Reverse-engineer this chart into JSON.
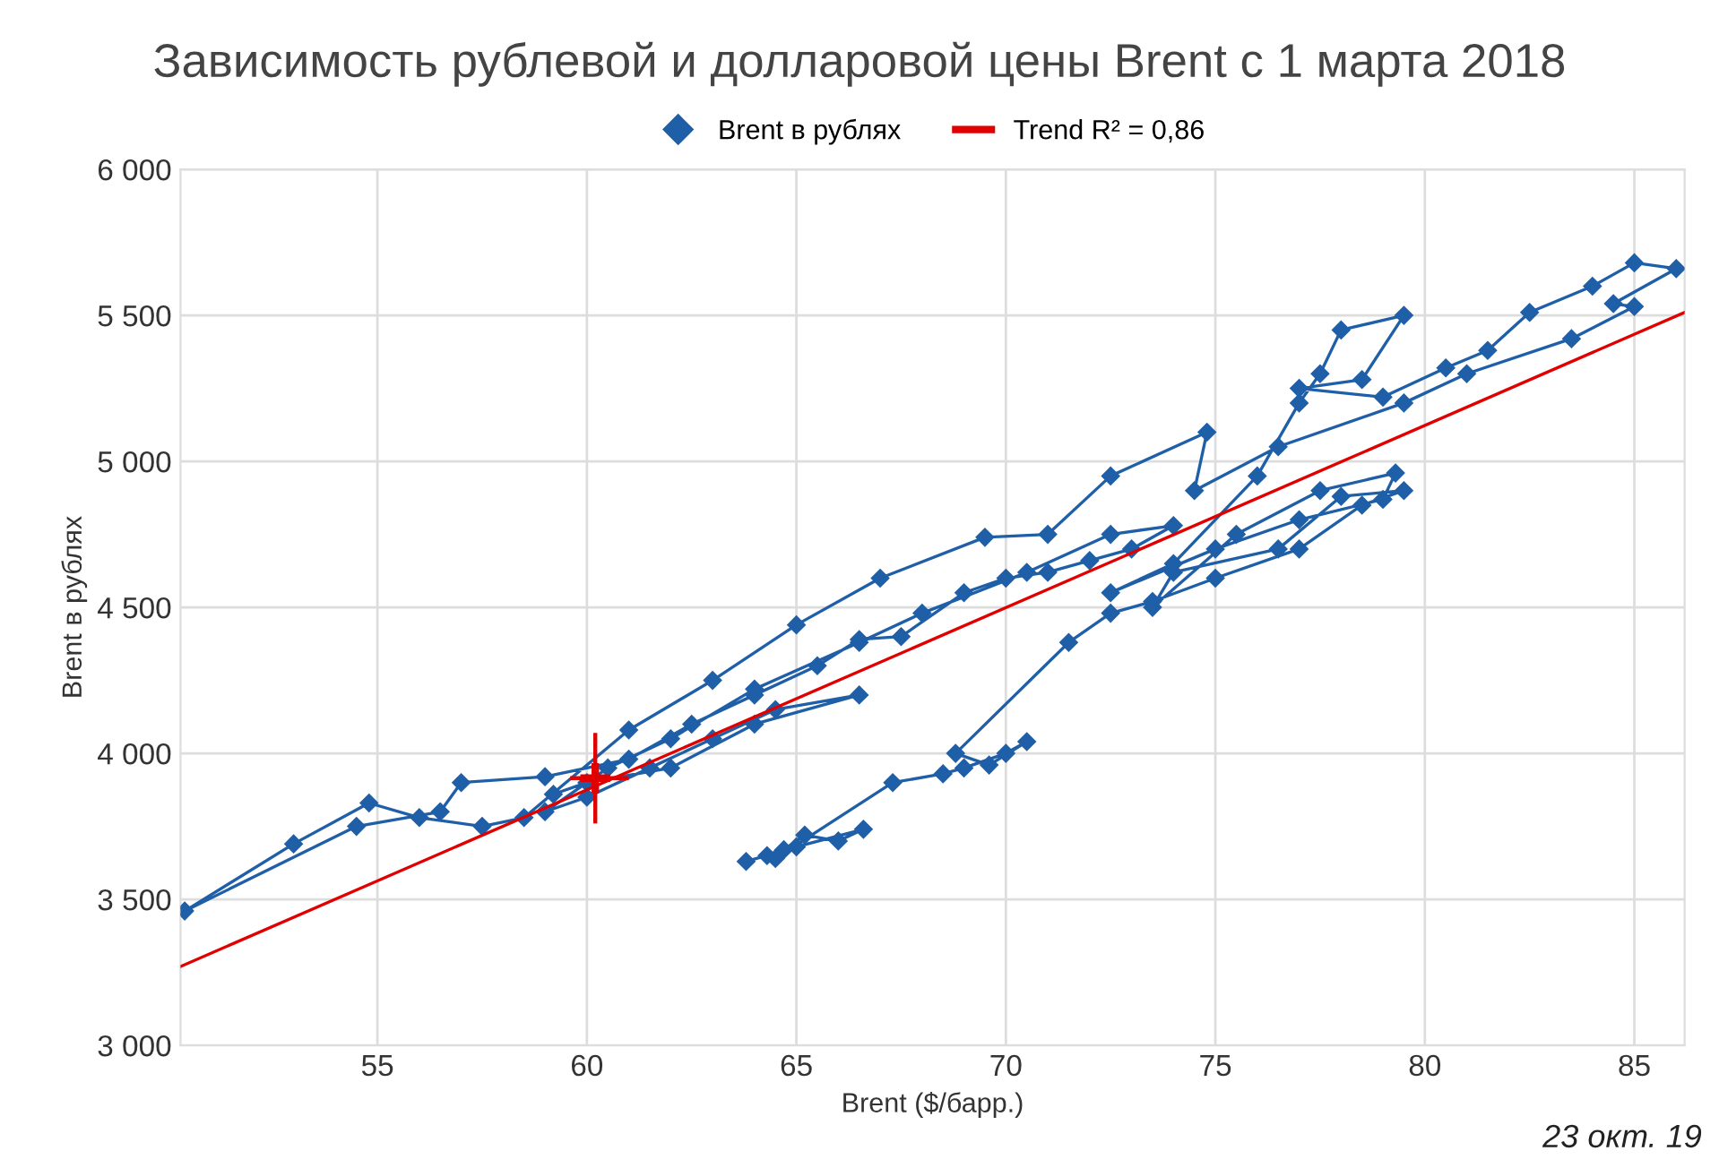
{
  "chart_data": {
    "type": "line",
    "title": "Зависимость рублевой и долларовой цены Brent с 1 марта 2018",
    "xlabel": "Brent ($/барр.)",
    "ylabel": "Brent в рублях",
    "xlim": [
      50.3,
      86.2
    ],
    "xticks": [
      55,
      60,
      65,
      70,
      75,
      80,
      85
    ],
    "ylim": [
      3000,
      6000
    ],
    "yticks": [
      {
        "value": 3000,
        "label": "3 000"
      },
      {
        "value": 3500,
        "label": "3 500"
      },
      {
        "value": 4000,
        "label": "4 000"
      },
      {
        "value": 4500,
        "label": "4 500"
      },
      {
        "value": 5000,
        "label": "5 000"
      },
      {
        "value": 5500,
        "label": "5 500"
      },
      {
        "value": 6000,
        "label": "6 000"
      }
    ],
    "grid": true,
    "legend": "top",
    "marker": "diamond",
    "line_style": "solid",
    "annotations": [
      "23 окт. 19"
    ],
    "series": [
      {
        "name": "Brent в рублях",
        "color": "#1f5fa8",
        "x": [
          63.8,
          64.3,
          64.7,
          65.2,
          66.0,
          66.6,
          65.0,
          64.5,
          67.3,
          68.5,
          69.0,
          70.0,
          70.5,
          69.6,
          68.8,
          71.5,
          72.5,
          73.5,
          75.0,
          77.0,
          78.5,
          79.5,
          78.0,
          76.5,
          74.0,
          73.5,
          75.5,
          77.5,
          79.3,
          79.0,
          77.0,
          75.0,
          72.5,
          74.0,
          76.0,
          77.0,
          77.5,
          78.0,
          79.5,
          78.5,
          77.0,
          79.0,
          80.5,
          81.5,
          82.5,
          84.0,
          85.0,
          86.0,
          84.5,
          85.0,
          83.5,
          81.0,
          79.5,
          76.5,
          74.5,
          74.8,
          72.5,
          71.0,
          69.5,
          67.0,
          65.0,
          63.0,
          61.0,
          58.5,
          57.5,
          56.0,
          54.8,
          53.0,
          50.4,
          54.5,
          56.5,
          57.0,
          59.0,
          61.0,
          62.5,
          64.0,
          65.5,
          66.5,
          67.5,
          69.0,
          70.0,
          71.0,
          72.0,
          73.0,
          74.0,
          72.5,
          70.5,
          68.0,
          66.5,
          64.0,
          62.0,
          60.5,
          59.0,
          60.0,
          61.5,
          63.0,
          64.5,
          66.5,
          64.0,
          62.0,
          60.0,
          59.2
        ],
        "values": [
          3630,
          3650,
          3670,
          3720,
          3700,
          3740,
          3680,
          3640,
          3900,
          3930,
          3950,
          4000,
          4040,
          3960,
          4000,
          4380,
          4480,
          4520,
          4600,
          4700,
          4850,
          4900,
          4880,
          4700,
          4620,
          4500,
          4750,
          4900,
          4960,
          4870,
          4800,
          4700,
          4550,
          4650,
          4950,
          5200,
          5300,
          5450,
          5500,
          5280,
          5250,
          5220,
          5320,
          5380,
          5510,
          5600,
          5680,
          5660,
          5540,
          5530,
          5420,
          5300,
          5200,
          5050,
          4900,
          5100,
          4950,
          4750,
          4740,
          4600,
          4440,
          4250,
          4080,
          3780,
          3750,
          3780,
          3830,
          3690,
          3460,
          3750,
          3800,
          3900,
          3920,
          3980,
          4100,
          4200,
          4300,
          4390,
          4400,
          4550,
          4600,
          4620,
          4660,
          4700,
          4780,
          4750,
          4620,
          4480,
          4380,
          4220,
          4050,
          3950,
          3800,
          3850,
          3950,
          4050,
          4150,
          4200,
          4100,
          3950,
          3900,
          3860
        ]
      },
      {
        "name": "Trend R² = 0,86",
        "color": "#e00000",
        "marker": "none",
        "x": [
          50.3,
          86.2
        ],
        "values": [
          3270,
          5510
        ]
      },
      {
        "type": "scatter",
        "color": "#e00000",
        "marker": "cross",
        "x": [
          60.2
        ],
        "values": [
          3915
        ],
        "errors": [
          [
            3760,
            4070
          ]
        ],
        "xerrors": [
          [
            59.6,
            61.0
          ]
        ]
      }
    ]
  }
}
